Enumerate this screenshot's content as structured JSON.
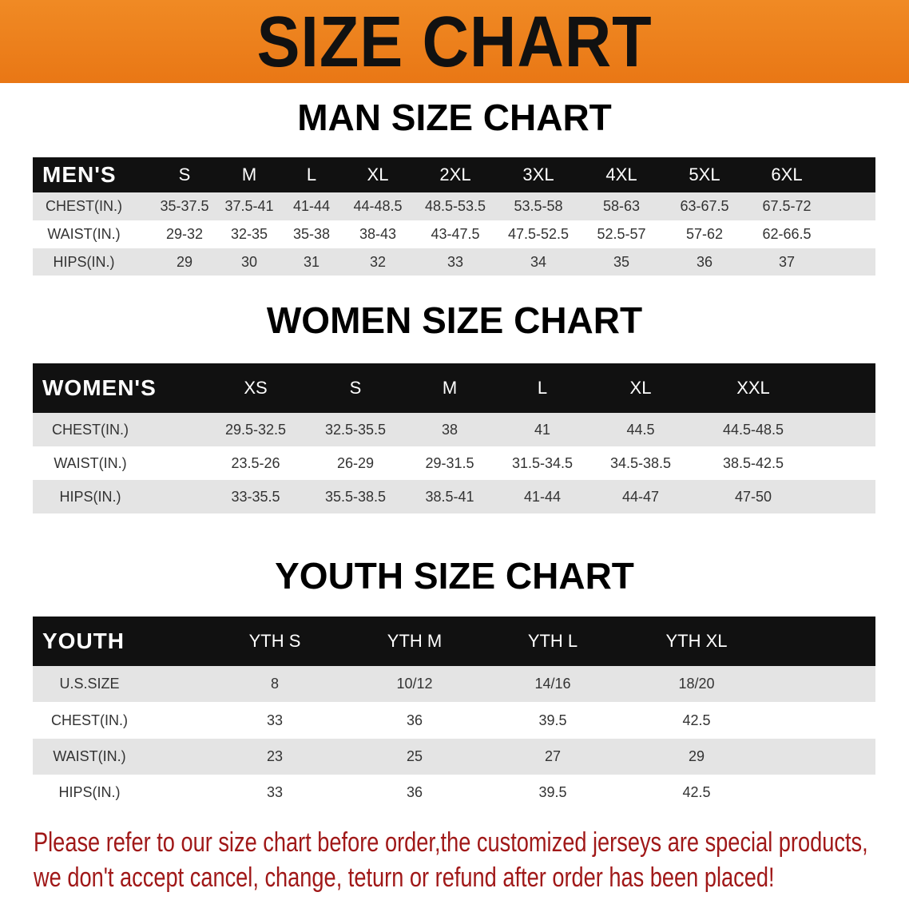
{
  "banner_title": "SIZE CHART",
  "men": {
    "title": "MAN SIZE CHART",
    "header": [
      "MEN'S",
      "S",
      "M",
      "L",
      "XL",
      "2XL",
      "3XL",
      "4XL",
      "5XL",
      "6XL"
    ],
    "rows": [
      [
        "CHEST(IN.)",
        "35-37.5",
        "37.5-41",
        "41-44",
        "44-48.5",
        "48.5-53.5",
        "53.5-58",
        "58-63",
        "63-67.5",
        "67.5-72"
      ],
      [
        "WAIST(IN.)",
        "29-32",
        "32-35",
        "35-38",
        "38-43",
        "43-47.5",
        "47.5-52.5",
        "52.5-57",
        "57-62",
        "62-66.5"
      ],
      [
        "HIPS(IN.)",
        "29",
        "30",
        "31",
        "32",
        "33",
        "34",
        "35",
        "36",
        "37"
      ]
    ]
  },
  "women": {
    "title": "WOMEN SIZE CHART",
    "header": [
      "WOMEN'S",
      "XS",
      "S",
      "M",
      "L",
      "XL",
      "XXL"
    ],
    "rows": [
      [
        "CHEST(IN.)",
        "29.5-32.5",
        "32.5-35.5",
        "38",
        "41",
        "44.5",
        "44.5-48.5"
      ],
      [
        "WAIST(IN.)",
        "23.5-26",
        "26-29",
        "29-31.5",
        "31.5-34.5",
        "34.5-38.5",
        "38.5-42.5"
      ],
      [
        "HIPS(IN.)",
        "33-35.5",
        "35.5-38.5",
        "38.5-41",
        "41-44",
        "44-47",
        "47-50"
      ]
    ]
  },
  "youth": {
    "title": "YOUTH SIZE CHART",
    "header": [
      "YOUTH",
      "YTH S",
      "YTH M",
      "YTH L",
      "YTH XL"
    ],
    "rows": [
      [
        "U.S.SIZE",
        "8",
        "10/12",
        "14/16",
        "18/20"
      ],
      [
        "CHEST(IN.)",
        "33",
        "36",
        "39.5",
        "42.5"
      ],
      [
        "WAIST(IN.)",
        "23",
        "25",
        "27",
        "29"
      ],
      [
        "HIPS(IN.)",
        "33",
        "36",
        "39.5",
        "42.5"
      ]
    ]
  },
  "footer": {
    "line1": "Please refer to our size chart before order,the customized jerseys are special products,",
    "line2": "we don't accept cancel, change, teturn or refund after order has been placed!"
  },
  "colors": {
    "banner": "#ef8420",
    "header_row": "#111111",
    "stripe": "#e4e4e4",
    "notice": "#a01818"
  }
}
